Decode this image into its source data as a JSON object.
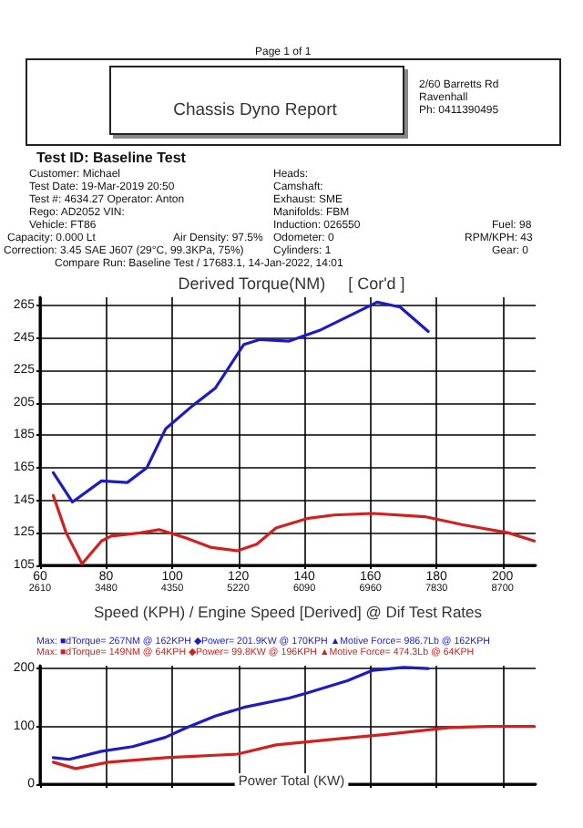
{
  "chart_data": [
    {
      "type": "other",
      "title": "Chassis Dyno Report",
      "annotations": [
        "Page 1 of 1",
        "2/60 Barretts Rd",
        "Ravenhall",
        "Ph: 0411390495",
        "Test ID: Baseline Test",
        "Customer: Michael",
        "Heads:",
        "Test Date: 19-Mar-2019 20:50",
        "Camshaft:",
        "Test #: 4634.27 Operator: Anton",
        "Exhaust: SME",
        "Rego: AD2052   VIN:",
        "Manifolds: FBM",
        "Vehicle: FT86",
        "Induction: 026550",
        "Fuel: 98",
        "Capacity: 0.000 Lt",
        "Air Density: 97.5%",
        "Odometer: 0",
        "RPM/KPH: 43",
        "Correction: 3.45 SAE J607 (29°C, 99.3KPa, 75%)",
        "Cylinders: 1",
        "Gear: 0",
        "Compare Run: Baseline Test / 17683.1, 14-Jan-2022, 14:01"
      ]
    },
    {
      "type": "line",
      "title": "Derived Torque(NM)     [ Cor'd ]",
      "xlabel": "Speed (KPH) / Engine Speed [Derived] @ Dif Test Rates",
      "xlim": [
        60,
        210
      ],
      "xticks": [
        60,
        80,
        100,
        120,
        140,
        160,
        180,
        200
      ],
      "x2lim": [
        2610,
        9135
      ],
      "x2ticks": [
        2610,
        3480,
        4350,
        5220,
        6090,
        6960,
        7830,
        8700
      ],
      "ylim": [
        105,
        270
      ],
      "yticks": [
        105,
        125,
        145,
        165,
        185,
        205,
        225,
        245,
        265
      ],
      "grid": true,
      "line_style": "solid",
      "annotations": [
        "Max: ■dTorque= 267NM @ 162KPH ◆Power= 201.9KW @ 170KPH ▲Motive Force= 986.7Lb @ 162KPH",
        "Max: ■dTorque= 149NM @ 64KPH ◆Power= 99.8KW @ 196KPH ▲Motive Force= 474.3Lb @ 64KPH"
      ],
      "series": [
        {
          "color": "#1c1cc0",
          "x": [
            64,
            69.8,
            78.6,
            86.4,
            92.3,
            98,
            106,
            113,
            121.7,
            126.6,
            135.4,
            145,
            155,
            162,
            169,
            177.5
          ],
          "values": [
            162,
            144,
            157,
            156,
            165,
            189,
            203,
            214,
            241,
            244,
            243,
            250,
            260,
            267,
            264,
            249
          ]
        },
        {
          "color": "#d02020",
          "x": [
            64,
            67.9,
            72.7,
            78.6,
            81.5,
            90.3,
            96,
            104,
            111.9,
            119.7,
            125.6,
            131.4,
            141.2,
            149,
            160.7,
            176.4,
            188,
            201.8,
            209.6
          ],
          "values": [
            148,
            125,
            106,
            120,
            123,
            125,
            127,
            122,
            116,
            114,
            118,
            128,
            134,
            136,
            137,
            135,
            130,
            125,
            120
          ]
        }
      ]
    },
    {
      "type": "line",
      "title": "Power Total (KW)",
      "xlim": [
        60,
        210
      ],
      "xticks": [
        60,
        80,
        100,
        120,
        140,
        160,
        180,
        200
      ],
      "ylim": [
        0,
        205
      ],
      "yticks": [
        0,
        100,
        200
      ],
      "grid": true,
      "tick_labels": "y",
      "line_style": "solid",
      "series": [
        {
          "color": "#1c1cc0",
          "x": [
            64,
            68.8,
            78.6,
            88,
            97.9,
            104,
            113,
            121.7,
            135.4,
            141,
            153,
            160.7,
            170,
            177.5
          ],
          "values": [
            46,
            43,
            57,
            65,
            81,
            97,
            118,
            133,
            149,
            158,
            179,
            197,
            202,
            200
          ]
        },
        {
          "color": "#d02020",
          "x": [
            64,
            70.8,
            80.6,
            98,
            119.7,
            131.4,
            149,
            164.6,
            184,
            196,
            209.6
          ],
          "values": [
            38,
            27,
            38,
            46,
            52,
            68,
            78,
            86,
            98,
            100,
            100
          ]
        }
      ]
    }
  ]
}
